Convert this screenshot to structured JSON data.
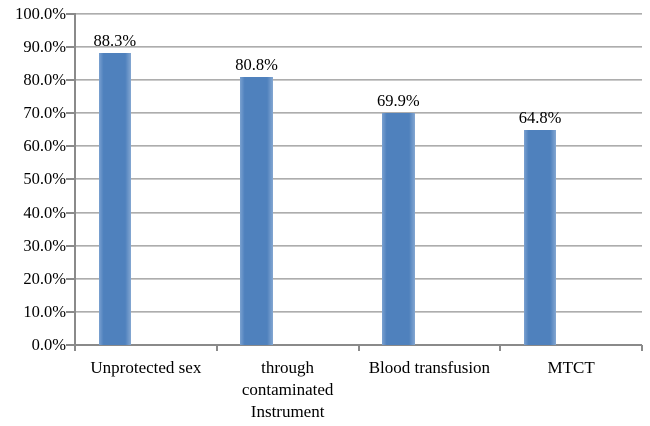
{
  "chart_data": {
    "type": "bar",
    "title": "",
    "xlabel": "",
    "ylabel": "",
    "categories": [
      "Unprotected sex",
      "through\ncontaminated\nInstrument",
      "Blood transfusion",
      "MTCT"
    ],
    "values": [
      88.3,
      80.8,
      69.9,
      64.8
    ],
    "value_labels": [
      "88.3%",
      "80.8%",
      "69.9%",
      "64.8%"
    ],
    "y_tick_labels": [
      "0.0%",
      "10.0%",
      "20.0%",
      "30.0%",
      "40.0%",
      "50.0%",
      "60.0%",
      "70.0%",
      "80.0%",
      "90.0%",
      "100.0%"
    ],
    "y_ticks": [
      0,
      10,
      20,
      30,
      40,
      50,
      60,
      70,
      80,
      90,
      100
    ],
    "ylim": [
      0,
      100
    ],
    "grid": true,
    "legend_position": "none",
    "bar_color": "#4F81BD",
    "gridline_color": "#9E9E9E",
    "axis_color": "#8A8A8A",
    "text_color": "#000000",
    "background_color": "#FFFFFF"
  }
}
